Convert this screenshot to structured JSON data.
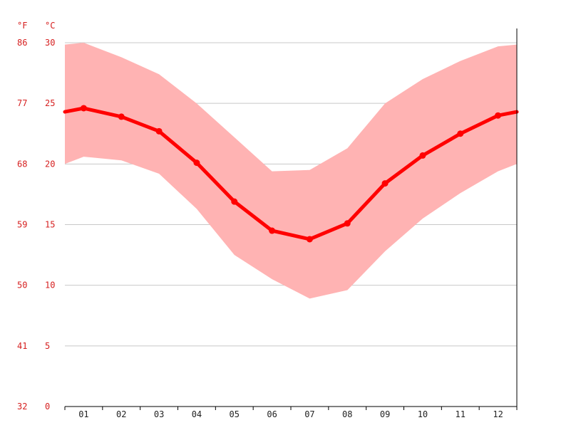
{
  "chart_data": {
    "type": "line",
    "title": "",
    "xlabel": "",
    "categories": [
      "01",
      "02",
      "03",
      "04",
      "05",
      "06",
      "07",
      "08",
      "09",
      "10",
      "11",
      "12"
    ],
    "y_unit_celsius": "°C",
    "y_unit_fahrenheit": "°F",
    "ylim": [
      0,
      30
    ],
    "yticks_celsius": [
      "0",
      "5",
      "10",
      "15",
      "20",
      "25",
      "30"
    ],
    "yticks_fahrenheit": [
      "32",
      "41",
      "50",
      "59",
      "68",
      "77",
      "86"
    ],
    "grid": true,
    "series": [
      {
        "values": [
          24.6,
          23.9,
          22.7,
          20.1,
          16.9,
          14.5,
          13.8,
          15.1,
          18.4,
          20.7,
          22.5,
          24.0
        ]
      }
    ],
    "band": {
      "upper": [
        30.0,
        28.8,
        27.4,
        25.0,
        22.2,
        19.4,
        19.5,
        21.3,
        25.0,
        27.0,
        28.5,
        29.7
      ],
      "lower": [
        20.6,
        20.3,
        19.2,
        16.3,
        12.5,
        10.5,
        8.9,
        9.6,
        12.8,
        15.5,
        17.6,
        19.4
      ]
    },
    "colors": {
      "line": "#ff0000",
      "band": "#ffb3b3",
      "grid": "#c8c8c8",
      "axis": "#000000",
      "tick_label_y": "#d62020",
      "tick_label_x": "#222222"
    }
  }
}
